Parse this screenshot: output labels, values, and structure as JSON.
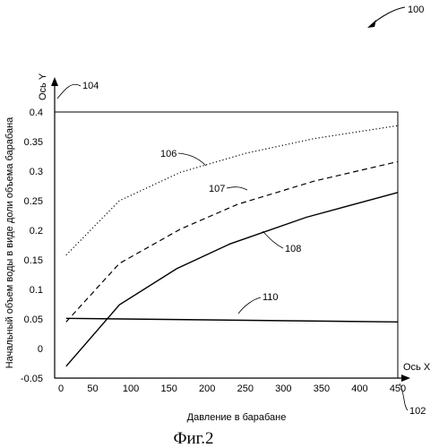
{
  "figure": {
    "ref_number": "100",
    "caption": "Фиг.2"
  },
  "chart_data": {
    "type": "line",
    "xlabel": "Давление в барабане",
    "ylabel": "Начальный объем воды в виде доли объема барабана",
    "x_axis_name": "Ось X",
    "y_axis_name": "Ось Y",
    "x_axis_ref": "102",
    "y_axis_ref": "104",
    "xlim": [
      0,
      450
    ],
    "ylim": [
      -0.05,
      0.4
    ],
    "x_ticks": [
      0,
      50,
      100,
      150,
      200,
      250,
      300,
      350,
      400,
      450
    ],
    "y_ticks": [
      -0.05,
      0,
      0.05,
      0.1,
      0.15,
      0.2,
      0.25,
      0.3,
      0.35,
      0.4
    ],
    "x_tick_labels": [
      "0",
      "50",
      "100",
      "150",
      "200",
      "250",
      "300",
      "350",
      "400",
      "450"
    ],
    "y_tick_labels": [
      "-0.05",
      "0",
      "0.05",
      "0.1",
      "0.15",
      "0.2",
      "0.25",
      "0.3",
      "0.35",
      "0.4"
    ],
    "grid": false,
    "series": [
      {
        "ref": "106",
        "style": "dotted",
        "x": [
          15,
          85,
          165,
          250,
          340,
          450
        ],
        "y": [
          0.158,
          0.25,
          0.298,
          0.33,
          0.355,
          0.377
        ]
      },
      {
        "ref": "107",
        "style": "dashed",
        "x": [
          15,
          85,
          165,
          240,
          340,
          450
        ],
        "y": [
          0.045,
          0.144,
          0.202,
          0.244,
          0.283,
          0.316
        ]
      },
      {
        "ref": "108",
        "style": "solid",
        "x": [
          15,
          85,
          160,
          230,
          330,
          450
        ],
        "y": [
          -0.03,
          0.074,
          0.135,
          0.177,
          0.222,
          0.264
        ]
      },
      {
        "ref": "110",
        "style": "solid",
        "x": [
          15,
          450
        ],
        "y": [
          0.051,
          0.045
        ]
      }
    ]
  }
}
